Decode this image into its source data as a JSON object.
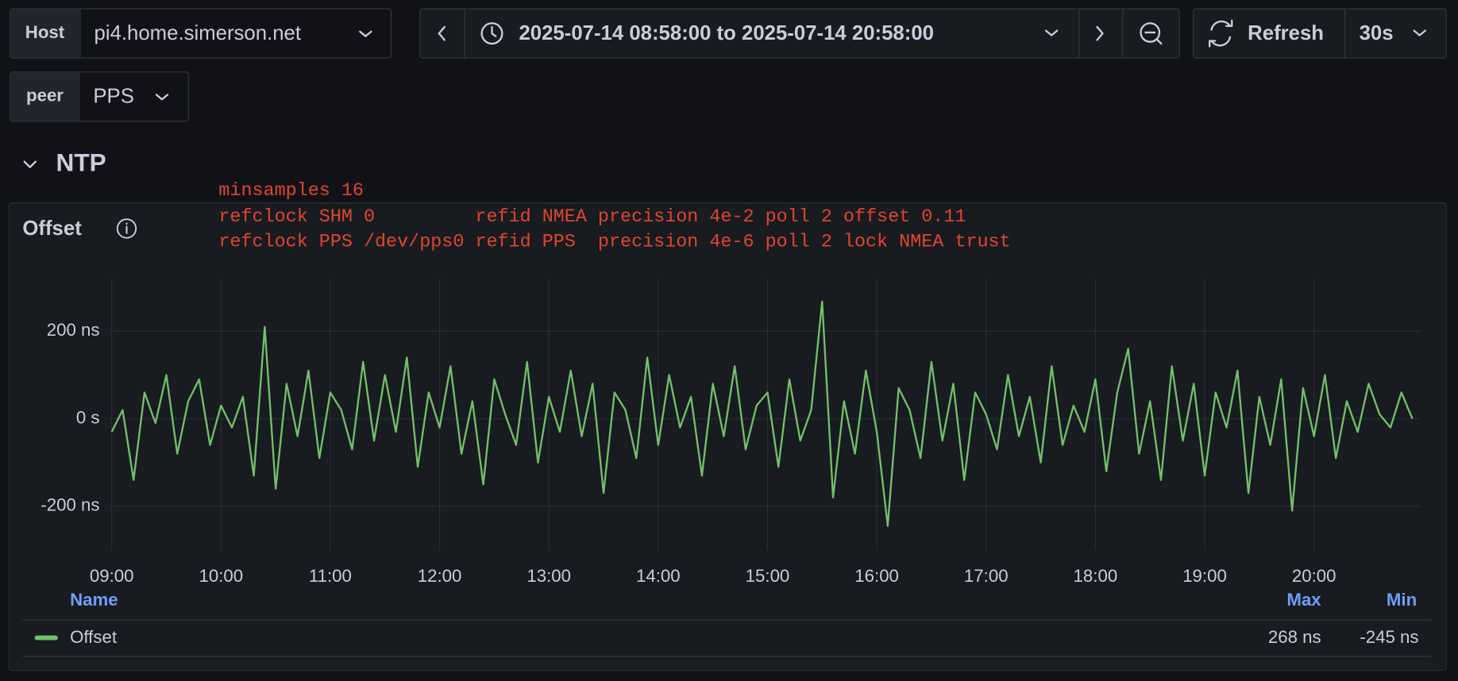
{
  "toolbar": {
    "host_label": "Host",
    "host_value": "pi4.home.simerson.net",
    "time_range": "2025-07-14 08:58:00 to 2025-07-14 20:58:00",
    "refresh": "Refresh",
    "refresh_interval": "30s",
    "peer_label": "peer",
    "peer_value": "PPS"
  },
  "row_title": "NTP",
  "panel": {
    "title": "Offset",
    "annotation_lines": [
      "minsamples 16",
      "refclock SHM 0         refid NMEA precision 4e-2 poll 2 offset 0.11",
      "refclock PPS /dev/pps0 refid PPS  precision 4e-6 poll 2 lock NMEA trust"
    ]
  },
  "chart_data": {
    "type": "line",
    "x": [
      "09:00",
      "09:06",
      "09:12",
      "09:18",
      "09:24",
      "09:30",
      "09:36",
      "09:42",
      "09:48",
      "09:54",
      "10:00",
      "10:06",
      "10:12",
      "10:18",
      "10:24",
      "10:30",
      "10:36",
      "10:42",
      "10:48",
      "10:54",
      "11:00",
      "11:06",
      "11:12",
      "11:18",
      "11:24",
      "11:30",
      "11:36",
      "11:42",
      "11:48",
      "11:54",
      "12:00",
      "12:06",
      "12:12",
      "12:18",
      "12:24",
      "12:30",
      "12:36",
      "12:42",
      "12:48",
      "12:54",
      "13:00",
      "13:06",
      "13:12",
      "13:18",
      "13:24",
      "13:30",
      "13:36",
      "13:42",
      "13:48",
      "13:54",
      "14:00",
      "14:06",
      "14:12",
      "14:18",
      "14:24",
      "14:30",
      "14:36",
      "14:42",
      "14:48",
      "14:54",
      "15:00",
      "15:06",
      "15:12",
      "15:18",
      "15:24",
      "15:30",
      "15:36",
      "15:42",
      "15:48",
      "15:54",
      "16:00",
      "16:06",
      "16:12",
      "16:18",
      "16:24",
      "16:30",
      "16:36",
      "16:42",
      "16:48",
      "16:54",
      "17:00",
      "17:06",
      "17:12",
      "17:18",
      "17:24",
      "17:30",
      "17:36",
      "17:42",
      "17:48",
      "17:54",
      "18:00",
      "18:06",
      "18:12",
      "18:18",
      "18:24",
      "18:30",
      "18:36",
      "18:42",
      "18:48",
      "18:54",
      "19:00",
      "19:06",
      "19:12",
      "19:18",
      "19:24",
      "19:30",
      "19:36",
      "19:42",
      "19:48",
      "19:54",
      "20:00",
      "20:06",
      "20:12",
      "20:18",
      "20:24",
      "20:30",
      "20:36",
      "20:42",
      "20:48",
      "20:54"
    ],
    "series": [
      {
        "name": "Offset",
        "color": "#73bf69",
        "values": [
          -30,
          20,
          -140,
          60,
          -10,
          100,
          -80,
          40,
          90,
          -60,
          30,
          -20,
          50,
          -130,
          210,
          -160,
          80,
          -40,
          110,
          -90,
          60,
          20,
          -70,
          130,
          -50,
          100,
          -30,
          140,
          -110,
          60,
          -20,
          120,
          -80,
          40,
          -150,
          90,
          10,
          -60,
          130,
          -100,
          50,
          -30,
          110,
          -40,
          80,
          -170,
          60,
          20,
          -90,
          140,
          -60,
          100,
          -20,
          50,
          -130,
          80,
          -40,
          120,
          -70,
          30,
          60,
          -110,
          90,
          -50,
          20,
          268,
          -180,
          40,
          -80,
          110,
          -30,
          -245,
          70,
          20,
          -90,
          130,
          -50,
          80,
          -140,
          60,
          10,
          -70,
          100,
          -40,
          50,
          -100,
          120,
          -60,
          30,
          -30,
          90,
          -120,
          60,
          160,
          -80,
          40,
          -140,
          120,
          -50,
          80,
          -130,
          60,
          -20,
          110,
          -170,
          50,
          -60,
          90,
          -210,
          70,
          -40,
          100,
          -90,
          40,
          -30,
          80,
          10,
          -20,
          60,
          0
        ]
      }
    ],
    "xlim": [
      "08:58",
      "20:58"
    ],
    "xticks": [
      "09:00",
      "10:00",
      "11:00",
      "12:00",
      "13:00",
      "14:00",
      "15:00",
      "16:00",
      "17:00",
      "18:00",
      "19:00",
      "20:00"
    ],
    "ylim": [
      -300,
      320
    ],
    "yticks": [
      {
        "value": 200,
        "label": "200 ns"
      },
      {
        "value": 0,
        "label": "0 s"
      },
      {
        "value": -200,
        "label": "-200 ns"
      }
    ],
    "grid": true,
    "legend": {
      "headers": [
        "Name",
        "Max",
        "Min"
      ],
      "max": {
        "value": 268,
        "label": "268 ns"
      },
      "min": {
        "value": -245,
        "label": "-245 ns"
      }
    }
  }
}
